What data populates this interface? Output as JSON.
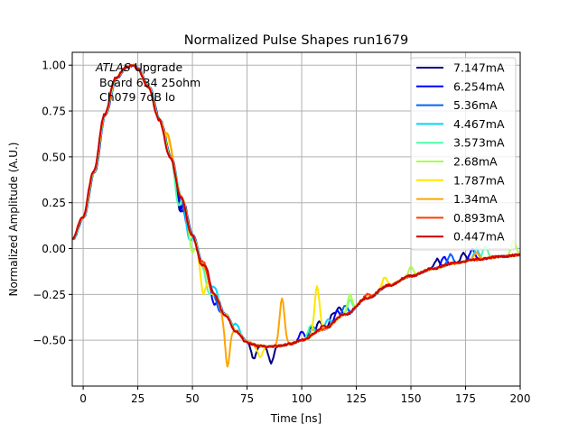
{
  "chart_data": {
    "type": "line",
    "title": "Normalized Pulse Shapes run1679",
    "xlabel": "Time [ns]",
    "ylabel": "Normalized Amplitude (A.U.)",
    "xlim": [
      -5,
      200
    ],
    "ylim": [
      -0.75,
      1.07
    ],
    "xticks": [
      0,
      25,
      50,
      75,
      100,
      125,
      150,
      175,
      200
    ],
    "xtick_labels": [
      "0",
      "25",
      "50",
      "75",
      "100",
      "125",
      "150",
      "175",
      "200"
    ],
    "yticks": [
      1.0,
      0.75,
      0.5,
      0.25,
      0.0,
      -0.25,
      -0.5
    ],
    "ytick_labels": [
      "1.00",
      "0.75",
      "0.50",
      "0.25",
      "0.00",
      "−0.25",
      "−0.50"
    ],
    "grid": true,
    "legend_position": "top-right",
    "annotation": {
      "italic": "ATLAS",
      "line1_rest": " Upgrade",
      "line2": "Board 634 25ohm",
      "line3": "Ch079 7dB lo"
    },
    "base_shape": {
      "x": [
        -5,
        0,
        5,
        10,
        15,
        20,
        23,
        25,
        30,
        35,
        40,
        45,
        50,
        55,
        60,
        65,
        70,
        75,
        80,
        85,
        90,
        95,
        100,
        110,
        120,
        130,
        140,
        150,
        160,
        170,
        180,
        190,
        200
      ],
      "y": [
        0.05,
        0.17,
        0.42,
        0.73,
        0.93,
        0.99,
        1.0,
        0.98,
        0.88,
        0.7,
        0.5,
        0.28,
        0.07,
        -0.1,
        -0.25,
        -0.36,
        -0.45,
        -0.51,
        -0.53,
        -0.535,
        -0.53,
        -0.52,
        -0.5,
        -0.44,
        -0.36,
        -0.27,
        -0.2,
        -0.15,
        -0.11,
        -0.08,
        -0.06,
        -0.045,
        -0.035
      ]
    },
    "series": [
      {
        "name": "7.147mA",
        "color": "#00007f",
        "glitches": [
          [
            44,
            -0.1
          ],
          [
            78,
            -0.08
          ],
          [
            86,
            -0.09
          ],
          [
            104,
            0.05
          ],
          [
            108,
            0.05
          ],
          [
            114,
            0.06
          ],
          [
            117,
            0.06
          ],
          [
            162,
            0.05
          ],
          [
            174,
            0.05
          ]
        ]
      },
      {
        "name": "6.254mA",
        "color": "#0000ff",
        "glitches": [
          [
            45,
            -0.08
          ],
          [
            60,
            -0.06
          ],
          [
            100,
            0.05
          ],
          [
            116,
            0.05
          ],
          [
            165,
            0.05
          ],
          [
            178,
            0.06
          ]
        ]
      },
      {
        "name": "5.36mA",
        "color": "#0063ff",
        "glitches": [
          [
            47,
            -0.07
          ],
          [
            62,
            -0.05
          ],
          [
            105,
            0.04
          ],
          [
            120,
            0.05
          ],
          [
            168,
            0.05
          ]
        ]
      },
      {
        "name": "4.467mA",
        "color": "#00d4ff",
        "glitches": [
          [
            48,
            -0.08
          ],
          [
            60,
            0.04
          ],
          [
            70,
            0.04
          ],
          [
            112,
            0.05
          ],
          [
            180,
            0.06
          ]
        ]
      },
      {
        "name": "3.573mA",
        "color": "#4dffa9",
        "glitches": [
          [
            43,
            -0.1
          ],
          [
            57,
            -0.08
          ],
          [
            104,
            0.06
          ],
          [
            122,
            0.07
          ],
          [
            184,
            0.07
          ]
        ]
      },
      {
        "name": "2.68mA",
        "color": "#a9ff4d",
        "glitches": [
          [
            50,
            -0.09
          ],
          [
            122,
            0.1
          ],
          [
            150,
            0.05
          ],
          [
            197,
            0.08
          ]
        ]
      },
      {
        "name": "1.787mA",
        "color": "#ffe500",
        "glitches": [
          [
            39,
            0.08
          ],
          [
            55,
            -0.15
          ],
          [
            81,
            -0.06
          ],
          [
            107,
            0.25
          ],
          [
            138,
            0.05
          ]
        ]
      },
      {
        "name": "1.34mA",
        "color": "#ffa400",
        "glitches": [
          [
            39,
            0.1
          ],
          [
            66,
            -0.27
          ],
          [
            91,
            0.26
          ],
          [
            180,
            0.04
          ]
        ]
      },
      {
        "name": "0.893mA",
        "color": "#ff3b00",
        "glitches": [
          [
            55,
            0.03
          ],
          [
            130,
            0.02
          ]
        ]
      },
      {
        "name": "0.447mA",
        "color": "#cc0000",
        "glitches": [
          [
            57,
            0.04
          ],
          [
            110,
            0.02
          ]
        ]
      }
    ]
  }
}
